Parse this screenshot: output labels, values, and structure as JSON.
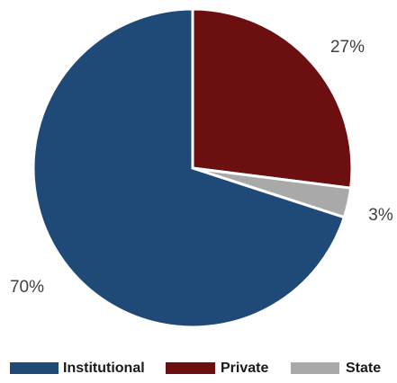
{
  "chart_data": {
    "type": "pie",
    "title": "",
    "slices": [
      {
        "label": "Institutional",
        "value": 70,
        "value_label": "70%",
        "color": "#1F4A78"
      },
      {
        "label": "Private",
        "value": 27,
        "value_label": "27%",
        "color": "#6B0F10"
      },
      {
        "label": "State",
        "value": 3,
        "value_label": "3%",
        "color": "#A9A9A9"
      }
    ],
    "legend_position": "bottom",
    "start_angle": "12 o'clock",
    "direction": "clockwise"
  }
}
